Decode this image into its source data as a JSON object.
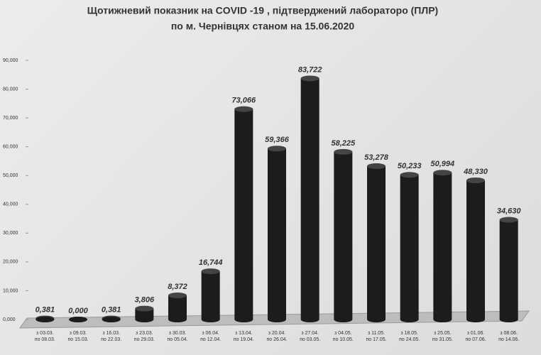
{
  "chart_data": {
    "type": "bar",
    "title": "Щотижневий показник  на COVID -19 , підтверджений лабораторо (ПЛР)",
    "subtitle": "по м. Чернівцях станом на 15.06.2020",
    "categories": [
      "з 03.03.\nпо 08.03.",
      "з 09.03.\nпо 15.03.",
      "з 16.03.\nпо 22.03.",
      "з 23.03.\nпо 29.03.",
      "з 30.03.\nпо 05.04.",
      "з 06.04.\nпо 12.04.",
      "з 13.04.\nпо 19.04.",
      "з 20.04.\nпо 26.04.",
      "з 27.04.\nпо 03.05.",
      "з 04.05.\nпо 10.05.",
      "з 11.05.\nпо 17.05.",
      "з 18.05.\nпо 24.05.",
      "з 25.05.\nпо 31.05.",
      "з 01.06.\nпо 07.06.",
      "з 08.06.\nпо 14.06."
    ],
    "values": [
      0.381,
      0,
      0.381,
      3.806,
      8.372,
      16.744,
      73.066,
      59.366,
      83.722,
      58.225,
      53.278,
      50.233,
      50.994,
      48.33,
      34.63
    ],
    "value_labels": [
      "0,381",
      "0,000",
      "0,381",
      "3,806",
      "8,372",
      "16,744",
      "73,066",
      "59,366",
      "83,722",
      "58,225",
      "53,278",
      "50,233",
      "50,994",
      "48,330",
      "34,630"
    ],
    "color": "#1c1c1c",
    "ylim": [
      0,
      90
    ],
    "yticks": [
      {
        "value": 0,
        "label": "0,000"
      },
      {
        "value": 10,
        "label": "10,000"
      },
      {
        "value": 20,
        "label": "20,000"
      },
      {
        "value": 30,
        "label": "30,000"
      },
      {
        "value": 40,
        "label": "40,000"
      },
      {
        "value": 50,
        "label": "50,000"
      },
      {
        "value": 60,
        "label": "60,000"
      },
      {
        "value": 70,
        "label": "70,000"
      },
      {
        "value": 80,
        "label": "80,000"
      },
      {
        "value": 90,
        "label": "90,000"
      }
    ]
  }
}
